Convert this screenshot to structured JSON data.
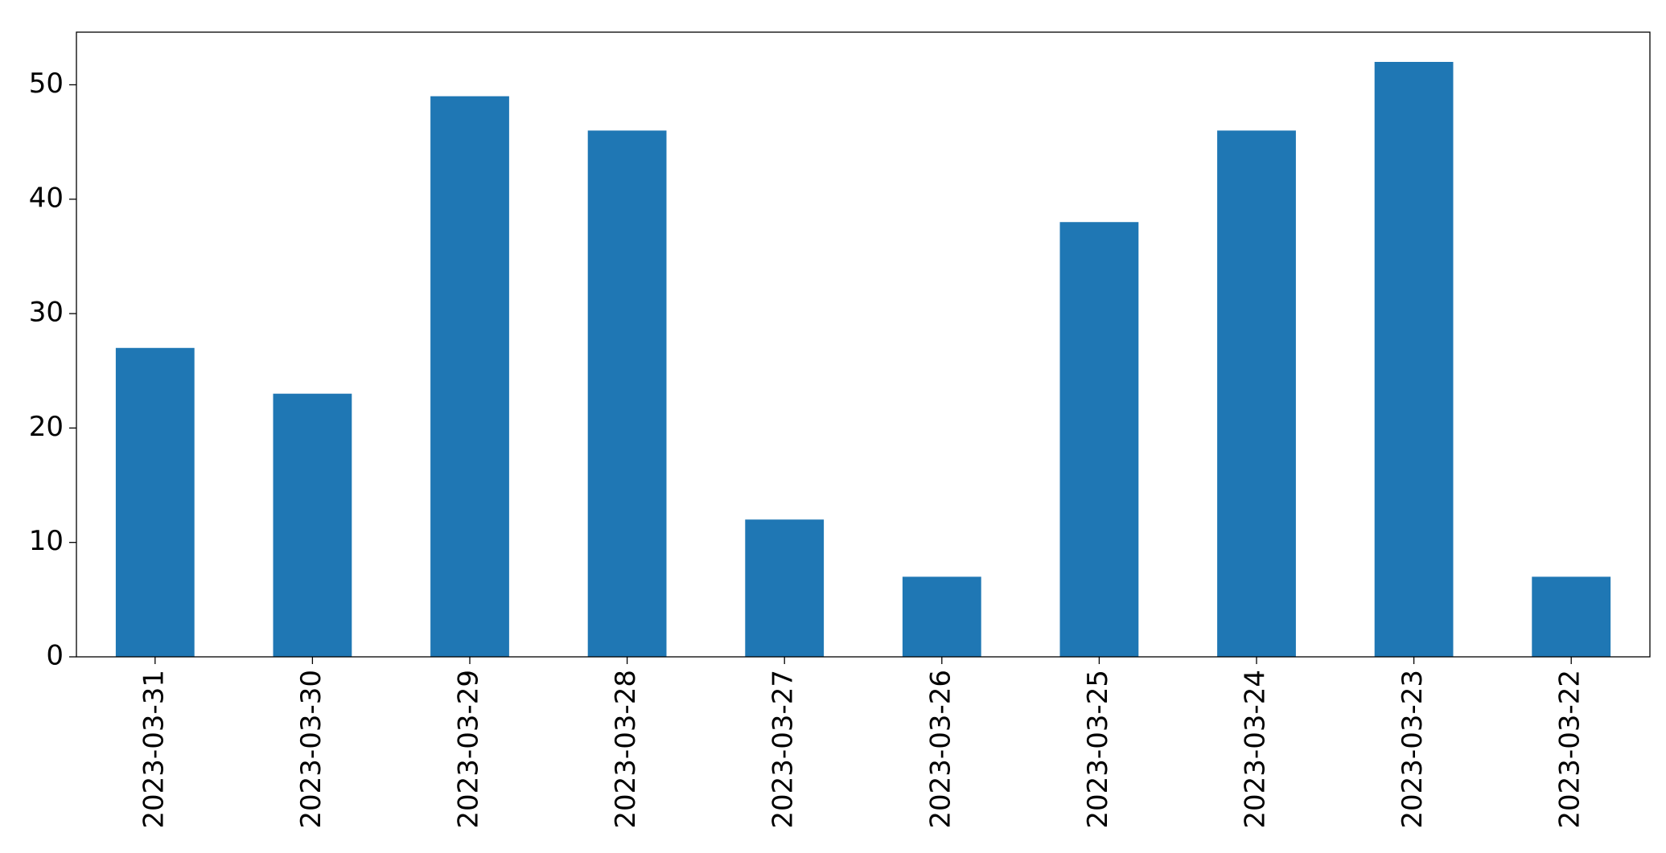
{
  "chart_data": {
    "type": "bar",
    "categories": [
      "2023-03-31",
      "2023-03-30",
      "2023-03-29",
      "2023-03-28",
      "2023-03-27",
      "2023-03-26",
      "2023-03-25",
      "2023-03-24",
      "2023-03-23",
      "2023-03-22"
    ],
    "values": [
      27,
      23,
      49,
      46,
      12,
      7,
      38,
      46,
      52,
      7
    ],
    "color": "#1f77b4",
    "ylim": [
      0,
      54.6
    ],
    "yticks": [
      0,
      10,
      20,
      30,
      40,
      50
    ],
    "grid": false
  }
}
